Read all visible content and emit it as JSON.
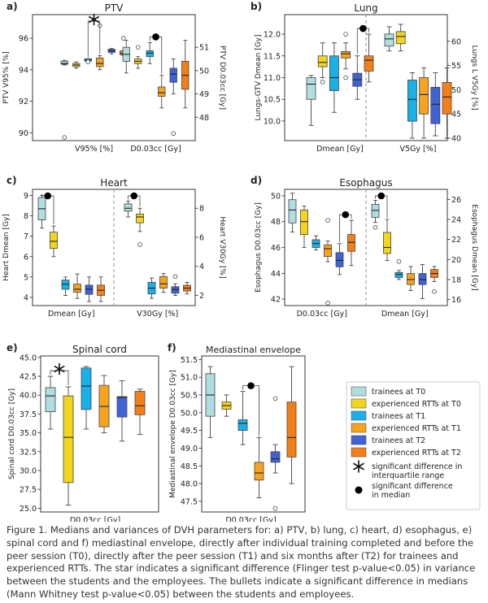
{
  "legend": {
    "items": [
      {
        "label": "trainees at T0",
        "color": "#b0dde0"
      },
      {
        "label": "experienced RTTs at T0",
        "color": "#f3d51a"
      },
      {
        "label": "trainees at T1",
        "color": "#1ab0ea"
      },
      {
        "label": "experienced RTTs at T1",
        "color": "#f7a41d"
      },
      {
        "label": "trainees at T2",
        "color": "#3f62d6"
      },
      {
        "label": "experienced RTTs at T2",
        "color": "#f57f17"
      }
    ],
    "star_label": "significant difference in interquartile range",
    "dot_label": "significant difference in median"
  },
  "caption": "Figure 1. Medians and variances of DVH parameters for: a) PTV, b) lung, c) heart, d) esophagus, e) spinal cord and f) mediastinal envelope, directly after individual training completed and before the peer session (T0), directly after the peer session (T1) and six months after (T2) for trainees and experienced RTTs. The star indicates a significant difference (Flinger test p-value<0.05) in variance between the students and the employees. The bullets indicate a significant difference in medians (Mann Whitney test p-value<0.05) between the students and employees.",
  "chart_data": [
    {
      "id": "a",
      "panel_label": "a)",
      "type": "box",
      "title": "PTV",
      "ylabel_left": "PTV V95% [%]",
      "ylabel_right": "PTV D0.03cc [Gy]",
      "ylim_left": [
        89.5,
        97.5
      ],
      "yticks_left": [
        90,
        92,
        94,
        96
      ],
      "ylim_right": [
        47.0,
        52.4
      ],
      "yticks_right": [
        48,
        49,
        50,
        51
      ],
      "groups": [
        {
          "label": "V95% [%]",
          "axis": "left",
          "boxes": [
            {
              "q1": 94.35,
              "median": 94.4,
              "q3": 94.55,
              "wlo": 94.3,
              "whi": 94.6,
              "outliers": [
                89.7
              ]
            },
            {
              "q1": 94.2,
              "median": 94.3,
              "q3": 94.4,
              "wlo": 94.1,
              "whi": 94.5,
              "outliers": []
            },
            {
              "q1": 94.55,
              "median": 94.6,
              "q3": 94.7,
              "wlo": 94.5,
              "whi": 94.7,
              "outliers": [
                94.5
              ]
            },
            {
              "q1": 94.2,
              "median": 94.4,
              "q3": 94.75,
              "wlo": 94.0,
              "whi": 94.9,
              "outliers": [
                96.8
              ]
            },
            {
              "q1": 95.1,
              "median": 95.2,
              "q3": 95.3,
              "wlo": 95.0,
              "whi": 95.35,
              "outliers": []
            },
            {
              "q1": 94.95,
              "median": 95.05,
              "q3": 95.2,
              "wlo": 94.9,
              "whi": 95.2,
              "outliers": [
                96.0
              ]
            }
          ]
        },
        {
          "label": "D0.03cc [Gy]",
          "axis": "right",
          "boxes": [
            {
              "q1": 50.4,
              "median": 50.7,
              "q3": 51.0,
              "wlo": 49.9,
              "whi": 51.3,
              "outliers": []
            },
            {
              "q1": 50.3,
              "median": 50.4,
              "q3": 50.5,
              "wlo": 50.1,
              "whi": 50.6,
              "outliers": [
                51.0
              ]
            },
            {
              "q1": 50.6,
              "median": 50.75,
              "q3": 50.85,
              "wlo": 50.3,
              "whi": 51.2,
              "outliers": []
            },
            {
              "q1": 48.9,
              "median": 49.05,
              "q3": 49.3,
              "wlo": 48.4,
              "whi": 49.8,
              "outliers": []
            },
            {
              "q1": 49.5,
              "median": 49.85,
              "q3": 50.1,
              "wlo": 49.0,
              "whi": 50.5,
              "outliers": [
                47.3
              ]
            },
            {
              "q1": 49.2,
              "median": 49.8,
              "q3": 50.4,
              "wlo": 48.4,
              "whi": 51.3,
              "outliers": []
            }
          ]
        }
      ],
      "markers": [
        {
          "type": "star",
          "group": 0,
          "from": 2,
          "to": 3
        },
        {
          "type": "dot",
          "group": 1,
          "from": 2,
          "to": 3
        }
      ]
    },
    {
      "id": "b",
      "panel_label": "b)",
      "type": "box",
      "title": "Lung",
      "ylabel_left": "Lungs-GTV Dmean [Gy]",
      "ylabel_right": "Lungs L V5Gy [%]",
      "ylim_left": [
        9.55,
        12.45
      ],
      "yticks_left": [
        10.0,
        10.5,
        11.0,
        11.5,
        12.0
      ],
      "ylim_right": [
        39.5,
        65.5
      ],
      "yticks_right": [
        40,
        45,
        50,
        55,
        60
      ],
      "divider": true,
      "groups": [
        {
          "label": "Dmean [Gy]",
          "axis": "left",
          "boxes": [
            {
              "q1": 10.5,
              "median": 10.85,
              "q3": 11.0,
              "wlo": 9.9,
              "whi": 11.05,
              "outliers": []
            },
            {
              "q1": 11.25,
              "median": 11.35,
              "q3": 11.5,
              "wlo": 11.0,
              "whi": 11.8,
              "outliers": [
                10.9
              ]
            },
            {
              "q1": 10.7,
              "median": 11.0,
              "q3": 11.5,
              "wlo": 10.2,
              "whi": 11.8,
              "outliers": []
            },
            {
              "q1": 11.45,
              "median": 11.55,
              "q3": 11.6,
              "wlo": 11.2,
              "whi": 11.8,
              "outliers": [
                12.0,
                11.0
              ]
            },
            {
              "q1": 10.8,
              "median": 10.95,
              "q3": 11.1,
              "wlo": 10.5,
              "whi": 11.5,
              "outliers": []
            },
            {
              "q1": 11.15,
              "median": 11.4,
              "q3": 11.5,
              "wlo": 10.9,
              "whi": 12.0,
              "outliers": []
            }
          ]
        },
        {
          "label": "V5Gy [%]",
          "axis": "right",
          "boxes": [
            {
              "q1": 59.0,
              "median": 60.5,
              "q3": 61.5,
              "wlo": 58.0,
              "whi": 63.0,
              "outliers": []
            },
            {
              "q1": 59.5,
              "median": 61.0,
              "q3": 62.0,
              "wlo": 58.0,
              "whi": 63.5,
              "outliers": []
            },
            {
              "q1": 43.5,
              "median": 48.0,
              "q3": 52.0,
              "wlo": 40.0,
              "whi": 53.5,
              "outliers": []
            },
            {
              "q1": 45.0,
              "median": 49.0,
              "q3": 52.5,
              "wlo": 40.0,
              "whi": 54.5,
              "outliers": []
            },
            {
              "q1": 43.0,
              "median": 47.0,
              "q3": 50.5,
              "wlo": 40.5,
              "whi": 53.5,
              "outliers": []
            },
            {
              "q1": 45.0,
              "median": 48.5,
              "q3": 51.5,
              "wlo": 40.0,
              "whi": 54.5,
              "outliers": []
            }
          ]
        }
      ],
      "markers": [
        {
          "type": "dot",
          "group": 0,
          "from": 4,
          "to": 5
        }
      ]
    },
    {
      "id": "c",
      "panel_label": "c)",
      "type": "box",
      "title": "Heart",
      "ylabel_left": "Heart Dmean [Gy]",
      "ylabel_right": "Heart V30Gy [%]",
      "ylim_left": [
        3.6,
        9.3
      ],
      "yticks_left": [
        4,
        5,
        6,
        7,
        8,
        9
      ],
      "ylim_right": [
        1.3,
        9.3
      ],
      "yticks_right": [
        2,
        4,
        6,
        8
      ],
      "divider": true,
      "groups": [
        {
          "label": "Dmean [Gy]",
          "axis": "left",
          "boxes": [
            {
              "q1": 7.8,
              "median": 8.35,
              "q3": 8.9,
              "wlo": 7.4,
              "whi": 9.0,
              "outliers": []
            },
            {
              "q1": 6.4,
              "median": 6.75,
              "q3": 7.2,
              "wlo": 6.0,
              "whi": 7.5,
              "outliers": []
            },
            {
              "q1": 4.4,
              "median": 4.65,
              "q3": 4.85,
              "wlo": 4.1,
              "whi": 5.0,
              "outliers": []
            },
            {
              "q1": 4.25,
              "median": 4.4,
              "q3": 4.65,
              "wlo": 3.95,
              "whi": 5.15,
              "outliers": []
            },
            {
              "q1": 4.15,
              "median": 4.4,
              "q3": 4.6,
              "wlo": 3.8,
              "whi": 5.0,
              "outliers": []
            },
            {
              "q1": 4.1,
              "median": 4.35,
              "q3": 4.6,
              "wlo": 3.8,
              "whi": 5.0,
              "outliers": []
            }
          ]
        },
        {
          "label": "V30Gy [%]",
          "axis": "right",
          "boxes": [
            {
              "q1": 7.8,
              "median": 8.0,
              "q3": 8.3,
              "wlo": 7.4,
              "whi": 8.5,
              "outliers": []
            },
            {
              "q1": 7.0,
              "median": 7.4,
              "q3": 7.6,
              "wlo": 6.4,
              "whi": 8.0,
              "outliers": [
                5.5
              ]
            },
            {
              "q1": 2.1,
              "median": 2.5,
              "q3": 2.9,
              "wlo": 1.8,
              "whi": 3.2,
              "outliers": []
            },
            {
              "q1": 2.5,
              "median": 2.8,
              "q3": 3.3,
              "wlo": 2.2,
              "whi": 3.5,
              "outliers": []
            },
            {
              "q1": 2.15,
              "median": 2.4,
              "q3": 2.6,
              "wlo": 2.0,
              "whi": 2.8,
              "outliers": [
                3.3
              ]
            },
            {
              "q1": 2.3,
              "median": 2.5,
              "q3": 2.7,
              "wlo": 2.1,
              "whi": 2.9,
              "outliers": []
            }
          ]
        }
      ],
      "markers": [
        {
          "type": "dot",
          "group": 0,
          "from": 0,
          "to": 1
        },
        {
          "type": "dot",
          "group": 1,
          "from": 0,
          "to": 1
        }
      ]
    },
    {
      "id": "d",
      "panel_label": "d)",
      "type": "box",
      "title": "Esophagus",
      "ylabel_left": "Esophagus D0.03cc [Gy]",
      "ylabel_right": "Esophagus Dmean [Gy]",
      "ylim_left": [
        41.5,
        50.5
      ],
      "yticks_left": [
        42,
        44,
        46,
        48,
        50
      ],
      "ylim_right": [
        15.4,
        27.0
      ],
      "yticks_right": [
        16,
        18,
        20,
        22,
        24,
        26
      ],
      "divider": true,
      "groups": [
        {
          "label": "D0.03cc [Gy]",
          "axis": "left",
          "boxes": [
            {
              "q1": 47.9,
              "median": 48.9,
              "q3": 49.7,
              "wlo": 47.2,
              "whi": 50.2,
              "outliers": []
            },
            {
              "q1": 47.0,
              "median": 48.0,
              "q3": 48.9,
              "wlo": 46.0,
              "whi": 49.2,
              "outliers": []
            },
            {
              "q1": 46.0,
              "median": 46.3,
              "q3": 46.6,
              "wlo": 45.8,
              "whi": 46.9,
              "outliers": []
            },
            {
              "q1": 45.3,
              "median": 45.9,
              "q3": 46.2,
              "wlo": 44.9,
              "whi": 46.5,
              "outliers": [
                48.1,
                41.7
              ]
            },
            {
              "q1": 44.5,
              "median": 45.0,
              "q3": 45.6,
              "wlo": 43.9,
              "whi": 46.3,
              "outliers": []
            },
            {
              "q1": 45.7,
              "median": 46.4,
              "q3": 47.0,
              "wlo": 44.6,
              "whi": 48.1,
              "outliers": []
            }
          ]
        },
        {
          "label": "Dmean [Gy]",
          "axis": "right",
          "boxes": [
            {
              "q1": 24.2,
              "median": 24.9,
              "q3": 25.5,
              "wlo": 23.7,
              "whi": 25.9,
              "outliers": [
                23.2
              ]
            },
            {
              "q1": 20.6,
              "median": 21.2,
              "q3": 22.7,
              "wlo": 19.9,
              "whi": 24.0,
              "outliers": []
            },
            {
              "q1": 18.2,
              "median": 18.5,
              "q3": 18.7,
              "wlo": 18.0,
              "whi": 18.9,
              "outliers": [
                19.8
              ]
            },
            {
              "q1": 17.5,
              "median": 18.0,
              "q3": 18.6,
              "wlo": 16.9,
              "whi": 19.3,
              "outliers": []
            },
            {
              "q1": 17.5,
              "median": 18.0,
              "q3": 18.6,
              "wlo": 16.1,
              "whi": 19.5,
              "outliers": []
            },
            {
              "q1": 18.2,
              "median": 18.6,
              "q3": 19.0,
              "wlo": 17.8,
              "whi": 19.3,
              "outliers": [
                16.8
              ]
            }
          ]
        }
      ],
      "markers": [
        {
          "type": "dot",
          "group": 0,
          "from": 4,
          "to": 5
        },
        {
          "type": "dot",
          "group": 1,
          "from": 0,
          "to": 1
        }
      ]
    },
    {
      "id": "e",
      "panel_label": "e)",
      "type": "box",
      "title": "Spinal cord",
      "ylabel_left": "Spinal cord D0.03cc [Gy]",
      "ylim_left": [
        24.5,
        45.2
      ],
      "yticks_left": [
        25.0,
        27.5,
        30.0,
        32.5,
        35.0,
        37.5,
        40.0,
        42.5,
        45.0
      ],
      "groups": [
        {
          "label": "D0.03cc [Gy]",
          "axis": "left",
          "boxes": [
            {
              "q1": 37.8,
              "median": 39.9,
              "q3": 41.0,
              "wlo": 35.5,
              "whi": 42.5,
              "outliers": []
            },
            {
              "q1": 28.4,
              "median": 34.4,
              "q3": 39.9,
              "wlo": 25.4,
              "whi": 41.1,
              "outliers": []
            },
            {
              "q1": 38.1,
              "median": 41.2,
              "q3": 43.6,
              "wlo": 35.5,
              "whi": 43.8,
              "outliers": []
            },
            {
              "q1": 35.8,
              "median": 38.5,
              "q3": 41.3,
              "wlo": 35.0,
              "whi": 42.6,
              "outliers": []
            },
            {
              "q1": 37.1,
              "median": 39.7,
              "q3": 39.8,
              "wlo": 33.9,
              "whi": 41.9,
              "outliers": []
            },
            {
              "q1": 37.4,
              "median": 38.6,
              "q3": 40.5,
              "wlo": 34.8,
              "whi": 40.8,
              "outliers": []
            }
          ]
        }
      ],
      "markers": [
        {
          "type": "star",
          "group": 0,
          "from": 0,
          "to": 1
        }
      ]
    },
    {
      "id": "f",
      "panel_label": "f)",
      "type": "box",
      "title": "Mediastinal envelope",
      "ylabel_left": "Mediastinal envelope D0.03cc [Gy]",
      "ylim_left": [
        47.2,
        51.6
      ],
      "yticks_left": [
        47.5,
        48.0,
        48.5,
        49.0,
        49.5,
        50.0,
        50.5,
        51.0,
        51.5
      ],
      "groups": [
        {
          "label": "D0.03cc [Gy]",
          "axis": "left",
          "boxes": [
            {
              "q1": 49.9,
              "median": 50.5,
              "q3": 51.1,
              "wlo": 49.3,
              "whi": 51.3,
              "outliers": []
            },
            {
              "q1": 50.1,
              "median": 50.2,
              "q3": 50.3,
              "wlo": 49.9,
              "whi": 50.5,
              "outliers": []
            },
            {
              "q1": 49.5,
              "median": 49.7,
              "q3": 49.8,
              "wlo": 49.1,
              "whi": 50.6,
              "outliers": []
            },
            {
              "q1": 48.1,
              "median": 48.3,
              "q3": 48.6,
              "wlo": 47.6,
              "whi": 49.3,
              "outliers": []
            },
            {
              "q1": 48.6,
              "median": 48.7,
              "q3": 48.9,
              "wlo": 48.3,
              "whi": 49.1,
              "outliers": [
                50.4,
                47.3
              ]
            },
            {
              "q1": 48.75,
              "median": 49.3,
              "q3": 50.3,
              "wlo": 48.0,
              "whi": 51.3,
              "outliers": []
            }
          ]
        }
      ],
      "markers": [
        {
          "type": "dot",
          "group": 0,
          "from": 2,
          "to": 3
        }
      ]
    }
  ]
}
